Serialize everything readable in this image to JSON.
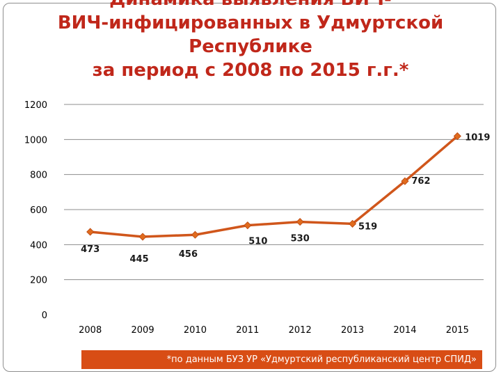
{
  "title": {
    "line1": "Динамика выявления ВИЧ-",
    "line2": "ВИЧ-инфицированных в Удмуртской",
    "line3": "Республике",
    "line4": "за период с 2008 по 2015 г.г.*"
  },
  "footnote": "*по данным БУЗ УР «Удмуртский республиканский центр СПИД»",
  "colors": {
    "title": "#c0271a",
    "line": "#d0561b",
    "marker": "#e06b1e",
    "footnote_bg": "#d84d15"
  },
  "chart_data": {
    "type": "line",
    "categories": [
      "2008",
      "2009",
      "2010",
      "2011",
      "2012",
      "2013",
      "2014",
      "2015"
    ],
    "series": [
      {
        "values": [
          473,
          445,
          456,
          510,
          530,
          519,
          762,
          1019
        ]
      }
    ],
    "data_labels": [
      "473",
      "445",
      "456",
      "510",
      "530",
      "519",
      "762",
      "1019"
    ],
    "y_ticks": [
      0,
      200,
      400,
      600,
      800,
      1000,
      1200
    ],
    "ylim": [
      0,
      1200
    ],
    "grid": true,
    "legend": "none",
    "marker": "diamond"
  }
}
